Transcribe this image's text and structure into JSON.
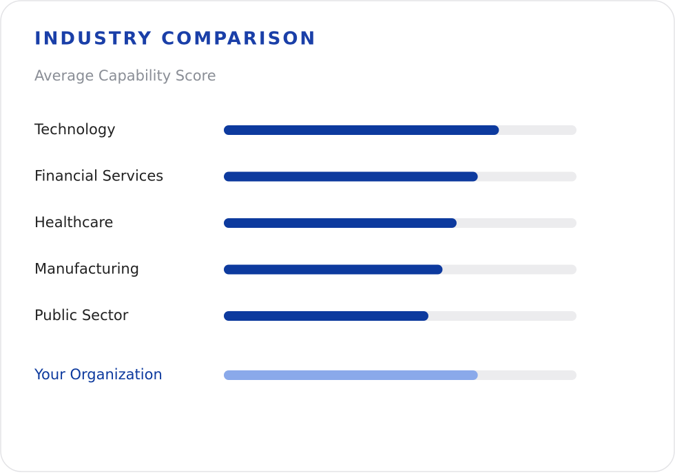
{
  "chart_data": {
    "type": "bar",
    "orientation": "horizontal",
    "title": "INDUSTRY COMPARISON",
    "subtitle": "Average Capability Score",
    "categories": [
      "Technology",
      "Financial Services",
      "Healthcare",
      "Manufacturing",
      "Public Sector",
      "Your Organization"
    ],
    "values": [
      78,
      72,
      66,
      62,
      58,
      72
    ],
    "colors": [
      "#0d3a9e",
      "#0d3a9e",
      "#0d3a9e",
      "#0d3a9e",
      "#0d3a9e",
      "#8aa9ea"
    ],
    "label_colors": [
      "#222222",
      "#222222",
      "#222222",
      "#222222",
      "#222222",
      "#0d3a9e"
    ],
    "track_color": "#ececee",
    "xlim": [
      0,
      100
    ]
  }
}
